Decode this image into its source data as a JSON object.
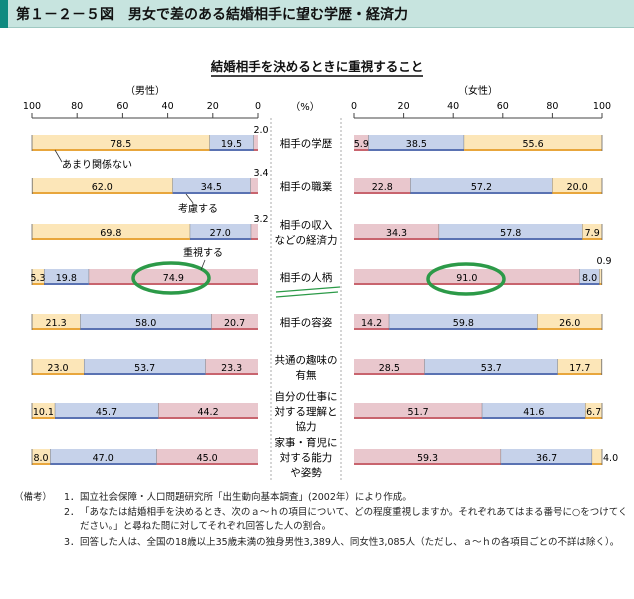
{
  "header": {
    "title": "第１－２－５図　男女で差のある結婚相手に望む学歴・経済力"
  },
  "chart_data": {
    "type": "bar",
    "title": "結婚相手を決めるときに重視すること",
    "left_axis_label": "（男性）",
    "right_axis_label": "（女性）",
    "unit_label": "（%）",
    "left_ticks": [
      "100",
      "80",
      "60",
      "40",
      "20",
      "0"
    ],
    "right_ticks": [
      "0",
      "20",
      "40",
      "60",
      "80",
      "100"
    ],
    "xlim": [
      0,
      100
    ],
    "series_names": [
      "重視する",
      "考慮する",
      "あまり関係ない"
    ],
    "colors": {
      "重視する": "#e9c7cd",
      "考慮する": "#c6d2ea",
      "あまり関係ない": "#fce6b8",
      "重視する_edge": "#c8646e",
      "考慮する_edge": "#5a72b2",
      "あまり関係ない_edge": "#e8a63c",
      "highlight_circle": "#2c9a48"
    },
    "categories": [
      "相手の学歴",
      "相手の職業",
      "相手の収入\nなどの経済力",
      "相手の人柄",
      "相手の容姿",
      "共通の趣味の\n有無",
      "自分の仕事に\n対する理解と\n協力",
      "家事・育児に\n対する能力\nや姿勢"
    ],
    "male": {
      "重視する": [
        2.0,
        3.4,
        3.2,
        74.9,
        20.7,
        23.3,
        44.2,
        45.0
      ],
      "考慮する": [
        19.5,
        34.5,
        27.0,
        19.8,
        58.0,
        53.7,
        45.7,
        47.0
      ],
      "あまり関係ない": [
        78.5,
        62.0,
        69.8,
        5.3,
        21.3,
        23.0,
        10.1,
        8.0
      ]
    },
    "female": {
      "重視する": [
        5.9,
        22.8,
        34.3,
        91.0,
        14.2,
        28.5,
        51.7,
        59.3
      ],
      "考慮する": [
        38.5,
        57.2,
        57.8,
        8.0,
        59.8,
        53.7,
        41.6,
        36.7
      ],
      "あまり関係ない": [
        55.6,
        20.0,
        7.9,
        0.9,
        26.0,
        17.7,
        6.7,
        4.0
      ]
    },
    "annotations": {
      "not_related": "あまり関係ない",
      "consider": "考慮する",
      "important": "重視する"
    },
    "highlighted_category": "相手の人柄"
  },
  "notes": {
    "label": "（備考）",
    "items": [
      {
        "num": "1．",
        "text": "国立社会保障・人口問題研究所「出生動向基本調査」(2002年）により作成。"
      },
      {
        "num": "2．",
        "text": "「あなたは結婚相手を決めるとき、次のａ～ｈの項目について、どの程度重視しますか。それぞれあてはまる番号に○をつけてください。」と尋ねた問に対してそれぞれ回答した人の割合。"
      },
      {
        "num": "3．",
        "text": "回答した人は、全国の18歳以上35歳未満の独身男性3,389人、同女性3,085人（ただし、ａ～ｈの各項目ごとの不詳は除く）。"
      }
    ]
  }
}
